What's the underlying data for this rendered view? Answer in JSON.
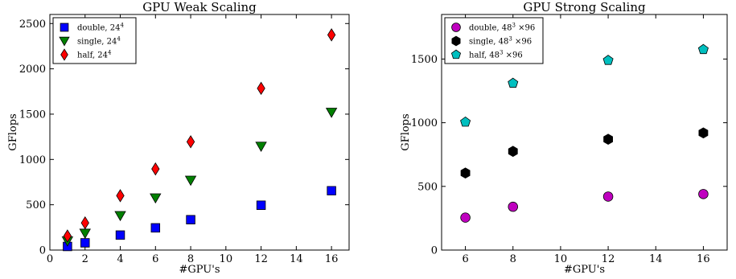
{
  "chart_data": [
    {
      "type": "scatter",
      "title": "GPU Weak Scaling",
      "xlabel": "#GPU's",
      "ylabel": "GFlops",
      "xlim": [
        0,
        17
      ],
      "ylim": [
        0,
        2600
      ],
      "xticks": [
        0,
        2,
        4,
        6,
        8,
        10,
        12,
        14,
        16
      ],
      "yticks": [
        0,
        500,
        1000,
        1500,
        2000,
        2500
      ],
      "legend_position": "top-left",
      "series": [
        {
          "name": "double, 24",
          "name_sup": "4",
          "marker": "square",
          "color": "#0000ff",
          "x": [
            1,
            2,
            4,
            6,
            8,
            12,
            16
          ],
          "y": [
            40,
            80,
            165,
            245,
            335,
            495,
            655
          ]
        },
        {
          "name": "single, 24",
          "name_sup": "4",
          "marker": "triangle-down",
          "color": "#008000",
          "x": [
            1,
            2,
            4,
            6,
            8,
            12,
            16
          ],
          "y": [
            100,
            185,
            380,
            575,
            770,
            1145,
            1520
          ]
        },
        {
          "name": "half, 24",
          "name_sup": "4",
          "marker": "diamond",
          "color": "#ff0000",
          "x": [
            1,
            2,
            4,
            6,
            8,
            12,
            16
          ],
          "y": [
            155,
            300,
            600,
            895,
            1195,
            1785,
            2375
          ]
        }
      ]
    },
    {
      "type": "scatter",
      "title": "GPU Strong Scaling",
      "xlabel": "#GPU's",
      "ylabel": "GFlops",
      "xlim": [
        5,
        17
      ],
      "ylim": [
        0,
        1850
      ],
      "xticks": [
        6,
        8,
        10,
        12,
        14,
        16
      ],
      "yticks": [
        0,
        500,
        1000,
        1500
      ],
      "legend_position": "top-left",
      "series": [
        {
          "name": "double, 48",
          "name_sup": "3",
          "name_suffix": " ×96",
          "marker": "circle",
          "color": "#bf00bf",
          "x": [
            6,
            8,
            12,
            16
          ],
          "y": [
            255,
            340,
            420,
            440
          ]
        },
        {
          "name": "single, 48",
          "name_sup": "3",
          "name_suffix": " ×96",
          "marker": "hexagon",
          "color": "#000000",
          "x": [
            6,
            8,
            12,
            16
          ],
          "y": [
            605,
            775,
            870,
            920
          ]
        },
        {
          "name": "half, 48",
          "name_sup": "3",
          "name_suffix": " ×96",
          "marker": "pentagon",
          "color": "#00bfbf",
          "x": [
            6,
            8,
            12,
            16
          ],
          "y": [
            1005,
            1310,
            1490,
            1575
          ]
        }
      ]
    }
  ]
}
